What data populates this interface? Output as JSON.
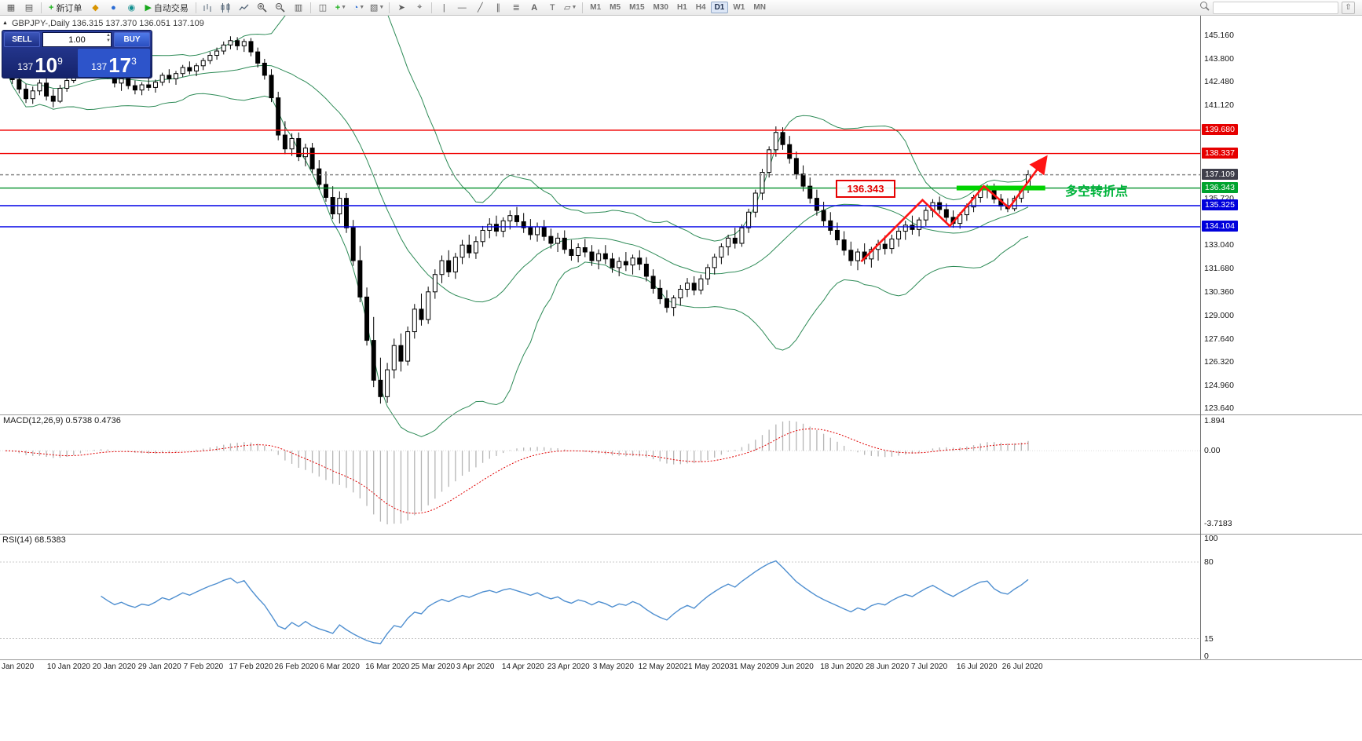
{
  "toolbar": {
    "new_order_label": "新订单",
    "autotrading_label": "自动交易",
    "timeframes": [
      "M1",
      "M5",
      "M15",
      "M30",
      "H1",
      "H4",
      "D1",
      "W1",
      "MN"
    ],
    "active_timeframe": "D1",
    "search_placeholder": ""
  },
  "window": {
    "title": "GBPJPY-,Daily 136.315 137.370 136.051 137.109"
  },
  "trade_panel": {
    "sell_label": "SELL",
    "buy_label": "BUY",
    "volume": "1.00",
    "bid": {
      "prefix": "137",
      "big": "10",
      "sup": "9"
    },
    "ask": {
      "prefix": "137",
      "big": "17",
      "sup": "3"
    }
  },
  "indicators": {
    "macd_label": "MACD(12,26,9) 0.5738 0.4736",
    "rsi_label": "RSI(14) 68.5383"
  },
  "annotations": {
    "price_label": "136.343",
    "note": "多空转折点"
  },
  "chart_data": {
    "type": "candlestick",
    "symbol": "GBPJPY-",
    "period": "Daily",
    "last_ohlc": [
      136.315,
      137.37,
      136.051,
      137.109
    ],
    "price_axis_labels": [
      "145.160",
      "143.800",
      "142.480",
      "141.120",
      "135.720",
      "133.040",
      "131.680",
      "130.360",
      "129.000",
      "127.640",
      "126.320",
      "124.960",
      "123.640"
    ],
    "price_badges": [
      {
        "text": "139.680",
        "bg": "#e60000"
      },
      {
        "text": "138.337",
        "bg": "#e60000"
      },
      {
        "text": "137.109",
        "bg": "#3f3f4b"
      },
      {
        "text": "136.343",
        "bg": "#00a32e"
      },
      {
        "text": "135.325",
        "bg": "#0000dc"
      },
      {
        "text": "134.104",
        "bg": "#0000dc"
      }
    ],
    "levels": [
      {
        "price": 139.68,
        "color": "#f00000",
        "dash": ""
      },
      {
        "price": 138.337,
        "color": "#f00000",
        "dash": ""
      },
      {
        "price": 137.109,
        "color": "#8a8a8a",
        "dash": "4 3"
      },
      {
        "price": 136.343,
        "color": "#008f29",
        "dash": ""
      },
      {
        "price": 135.325,
        "color": "#0000e6",
        "dash": ""
      },
      {
        "price": 134.104,
        "color": "#0000e6",
        "dash": ""
      }
    ],
    "bollinger": {
      "period": 20,
      "deviation": 2,
      "color": "#2e8b57"
    },
    "macd_axis": [
      "1.894",
      "0.00",
      "-3.7183"
    ],
    "rsi_axis": [
      {
        "text": "100",
        "value": 100
      },
      {
        "text": "80",
        "value": 80
      },
      {
        "text": "15",
        "value": 15
      },
      {
        "text": "0",
        "value": 0
      }
    ],
    "rsi_levels": [
      80,
      15
    ],
    "trend": {
      "color": "#ff1414",
      "points": [
        [
          125.5,
          132.1
        ],
        [
          134.5,
          135.65
        ],
        [
          138.5,
          134.15
        ],
        [
          143.5,
          136.45
        ],
        [
          147.2,
          135.2
        ],
        [
          152.5,
          138.05
        ]
      ]
    },
    "support_bar": {
      "price": 136.343,
      "from_index": 139.5,
      "to_index": 152.5,
      "color": "#00d300"
    },
    "dates": [
      "Jan 2020",
      "10 Jan 2020",
      "20 Jan 2020",
      "29 Jan 2020",
      "7 Feb 2020",
      "17 Feb 2020",
      "26 Feb 2020",
      "6 Mar 2020",
      "16 Mar 2020",
      "25 Mar 2020",
      "3 Apr 2020",
      "14 Apr 2020",
      "23 Apr 2020",
      "3 May 2020",
      "12 May 2020",
      "21 May 2020",
      "31 May 2020",
      "9 Jun 2020",
      "18 Jun 2020",
      "28 Jun 2020",
      "7 Jul 2020",
      "16 Jul 2020",
      "26 Jul 2020"
    ],
    "candles": [
      [
        143.1,
        143.55,
        142.7,
        143.3
      ],
      [
        143.3,
        143.5,
        142.35,
        142.6
      ],
      [
        142.6,
        142.9,
        141.8,
        142.05
      ],
      [
        142.05,
        142.35,
        141.25,
        141.5
      ],
      [
        141.5,
        142.2,
        141.2,
        141.95
      ],
      [
        141.95,
        142.6,
        141.7,
        142.4
      ],
      [
        142.4,
        142.7,
        141.4,
        141.65
      ],
      [
        141.65,
        142.05,
        141.0,
        141.35
      ],
      [
        141.35,
        142.3,
        141.25,
        142.1
      ],
      [
        142.1,
        142.75,
        141.9,
        142.55
      ],
      [
        142.55,
        143.3,
        142.4,
        143.1
      ],
      [
        143.1,
        143.85,
        142.95,
        143.65
      ],
      [
        143.65,
        144.3,
        143.4,
        144.05
      ],
      [
        144.05,
        144.5,
        143.55,
        143.75
      ],
      [
        143.75,
        144.15,
        143.25,
        143.45
      ],
      [
        143.45,
        143.7,
        142.65,
        142.9
      ],
      [
        142.9,
        143.15,
        142.15,
        142.4
      ],
      [
        142.4,
        142.85,
        141.95,
        142.65
      ],
      [
        142.65,
        143.05,
        142.05,
        142.25
      ],
      [
        142.25,
        142.55,
        141.75,
        142.0
      ],
      [
        142.0,
        142.45,
        141.7,
        142.3
      ],
      [
        142.3,
        142.75,
        141.95,
        142.15
      ],
      [
        142.15,
        142.6,
        141.85,
        142.45
      ],
      [
        142.45,
        143.0,
        142.25,
        142.85
      ],
      [
        142.85,
        143.2,
        142.4,
        142.65
      ],
      [
        142.65,
        143.1,
        142.3,
        142.95
      ],
      [
        142.95,
        143.45,
        142.75,
        143.3
      ],
      [
        143.3,
        143.65,
        142.9,
        143.1
      ],
      [
        143.1,
        143.55,
        142.8,
        143.4
      ],
      [
        143.4,
        143.85,
        143.15,
        143.7
      ],
      [
        143.7,
        144.2,
        143.5,
        144.0
      ],
      [
        144.0,
        144.45,
        143.75,
        144.25
      ],
      [
        144.25,
        144.8,
        144.05,
        144.6
      ],
      [
        144.6,
        145.1,
        144.35,
        144.85
      ],
      [
        144.85,
        145.05,
        144.3,
        144.55
      ],
      [
        144.55,
        144.95,
        144.2,
        144.8
      ],
      [
        144.8,
        145.0,
        143.95,
        144.2
      ],
      [
        144.2,
        144.45,
        143.3,
        143.55
      ],
      [
        143.55,
        143.8,
        142.6,
        142.85
      ],
      [
        142.85,
        143.2,
        141.3,
        141.55
      ],
      [
        141.55,
        141.9,
        139.1,
        139.4
      ],
      [
        139.4,
        140.2,
        138.3,
        138.6
      ],
      [
        138.6,
        139.5,
        138.2,
        139.2
      ],
      [
        139.2,
        139.55,
        137.9,
        138.15
      ],
      [
        138.15,
        138.9,
        137.6,
        138.65
      ],
      [
        138.65,
        138.95,
        137.2,
        137.45
      ],
      [
        137.45,
        137.95,
        136.25,
        136.55
      ],
      [
        136.55,
        137.3,
        135.55,
        135.8
      ],
      [
        135.8,
        136.45,
        134.55,
        134.85
      ],
      [
        134.85,
        136.15,
        134.3,
        135.75
      ],
      [
        135.75,
        136.05,
        133.75,
        134.05
      ],
      [
        134.05,
        134.5,
        131.85,
        132.15
      ],
      [
        132.15,
        133.0,
        129.75,
        130.05
      ],
      [
        130.05,
        130.6,
        127.25,
        127.55
      ],
      [
        127.55,
        128.9,
        124.85,
        125.25
      ],
      [
        125.25,
        126.55,
        123.9,
        124.3
      ],
      [
        124.3,
        126.25,
        123.95,
        125.85
      ],
      [
        125.85,
        127.65,
        125.35,
        127.25
      ],
      [
        127.25,
        127.95,
        125.75,
        126.35
      ],
      [
        126.35,
        128.35,
        126.1,
        128.05
      ],
      [
        128.05,
        129.65,
        127.65,
        129.35
      ],
      [
        129.35,
        130.25,
        128.4,
        128.75
      ],
      [
        128.75,
        130.65,
        128.5,
        130.35
      ],
      [
        130.35,
        131.65,
        129.95,
        131.35
      ],
      [
        131.35,
        132.45,
        130.85,
        132.15
      ],
      [
        132.15,
        132.75,
        131.2,
        131.5
      ],
      [
        131.5,
        132.6,
        131.1,
        132.35
      ],
      [
        132.35,
        133.35,
        131.95,
        133.05
      ],
      [
        133.05,
        133.65,
        132.3,
        132.6
      ],
      [
        132.6,
        133.55,
        132.25,
        133.25
      ],
      [
        133.25,
        134.15,
        132.95,
        133.9
      ],
      [
        133.9,
        134.6,
        133.45,
        134.25
      ],
      [
        134.25,
        134.75,
        133.55,
        133.85
      ],
      [
        133.85,
        134.65,
        133.5,
        134.45
      ],
      [
        134.45,
        135.05,
        133.95,
        134.75
      ],
      [
        134.75,
        135.25,
        134.15,
        134.4
      ],
      [
        134.4,
        134.9,
        133.75,
        134.05
      ],
      [
        134.05,
        134.55,
        133.35,
        133.65
      ],
      [
        133.65,
        134.35,
        133.25,
        134.1
      ],
      [
        134.1,
        134.5,
        133.3,
        133.55
      ],
      [
        133.55,
        134.0,
        132.85,
        133.15
      ],
      [
        133.15,
        133.75,
        132.65,
        133.45
      ],
      [
        133.45,
        133.9,
        132.55,
        132.8
      ],
      [
        132.8,
        133.35,
        132.15,
        132.45
      ],
      [
        132.45,
        133.15,
        132.05,
        132.9
      ],
      [
        132.9,
        133.4,
        132.35,
        132.65
      ],
      [
        132.65,
        133.05,
        131.85,
        132.15
      ],
      [
        132.15,
        132.8,
        131.65,
        132.55
      ],
      [
        132.55,
        133.05,
        131.95,
        132.25
      ],
      [
        132.25,
        132.6,
        131.45,
        131.75
      ],
      [
        131.75,
        132.35,
        131.25,
        132.1
      ],
      [
        132.1,
        132.65,
        131.55,
        131.9
      ],
      [
        131.9,
        132.5,
        131.35,
        132.3
      ],
      [
        132.3,
        132.75,
        131.6,
        131.95
      ],
      [
        131.95,
        132.35,
        130.95,
        131.25
      ],
      [
        131.25,
        131.65,
        130.25,
        130.55
      ],
      [
        130.55,
        131.05,
        129.65,
        129.95
      ],
      [
        129.95,
        130.45,
        129.15,
        129.45
      ],
      [
        129.45,
        130.15,
        128.95,
        130.0
      ],
      [
        130.0,
        130.75,
        129.55,
        130.5
      ],
      [
        130.5,
        131.15,
        130.05,
        130.85
      ],
      [
        130.85,
        131.25,
        130.15,
        130.45
      ],
      [
        130.45,
        131.35,
        130.2,
        131.1
      ],
      [
        131.1,
        131.95,
        130.75,
        131.75
      ],
      [
        131.75,
        132.55,
        131.35,
        132.35
      ],
      [
        132.35,
        133.15,
        131.95,
        132.95
      ],
      [
        132.95,
        133.65,
        132.45,
        133.45
      ],
      [
        133.45,
        134.05,
        132.85,
        133.15
      ],
      [
        133.15,
        134.25,
        132.95,
        134.05
      ],
      [
        134.05,
        135.15,
        133.75,
        134.95
      ],
      [
        134.95,
        136.25,
        134.65,
        136.05
      ],
      [
        136.05,
        137.45,
        135.65,
        137.25
      ],
      [
        137.25,
        138.75,
        136.95,
        138.55
      ],
      [
        138.55,
        139.9,
        138.15,
        139.55
      ],
      [
        139.55,
        139.85,
        138.55,
        138.85
      ],
      [
        138.85,
        139.35,
        137.75,
        138.05
      ],
      [
        138.05,
        138.45,
        136.85,
        137.15
      ],
      [
        137.15,
        137.65,
        136.15,
        136.45
      ],
      [
        136.45,
        136.95,
        135.45,
        135.75
      ],
      [
        135.75,
        136.25,
        134.75,
        135.05
      ],
      [
        135.05,
        135.55,
        134.15,
        134.45
      ],
      [
        134.45,
        134.95,
        133.65,
        133.9
      ],
      [
        133.9,
        134.35,
        133.05,
        133.35
      ],
      [
        133.35,
        133.85,
        132.45,
        132.75
      ],
      [
        132.75,
        133.25,
        131.85,
        132.15
      ],
      [
        132.15,
        132.85,
        131.6,
        132.65
      ],
      [
        132.65,
        133.15,
        131.95,
        132.25
      ],
      [
        132.25,
        132.95,
        131.75,
        132.8
      ],
      [
        132.8,
        133.35,
        132.15,
        133.1
      ],
      [
        133.1,
        133.6,
        132.5,
        132.85
      ],
      [
        132.85,
        133.65,
        132.55,
        133.4
      ],
      [
        133.4,
        134.05,
        132.95,
        133.85
      ],
      [
        133.85,
        134.45,
        133.35,
        134.2
      ],
      [
        134.2,
        134.75,
        133.65,
        133.95
      ],
      [
        133.95,
        134.65,
        133.55,
        134.5
      ],
      [
        134.5,
        135.25,
        134.15,
        135.05
      ],
      [
        135.05,
        135.7,
        134.65,
        135.5
      ],
      [
        135.5,
        135.85,
        134.85,
        135.1
      ],
      [
        135.1,
        135.45,
        134.35,
        134.65
      ],
      [
        134.65,
        135.05,
        134.05,
        134.3
      ],
      [
        134.3,
        134.95,
        134.0,
        134.8
      ],
      [
        134.8,
        135.45,
        134.45,
        135.25
      ],
      [
        135.25,
        135.95,
        134.95,
        135.8
      ],
      [
        135.8,
        136.4,
        135.5,
        136.25
      ],
      [
        136.25,
        136.55,
        135.75,
        136.4
      ],
      [
        136.4,
        136.6,
        135.45,
        135.7
      ],
      [
        135.7,
        136.0,
        135.05,
        135.3
      ],
      [
        135.3,
        135.75,
        134.95,
        135.15
      ],
      [
        135.15,
        135.9,
        135.0,
        135.75
      ],
      [
        135.75,
        136.45,
        135.5,
        136.3
      ],
      [
        136.315,
        137.37,
        136.051,
        137.109
      ]
    ]
  }
}
